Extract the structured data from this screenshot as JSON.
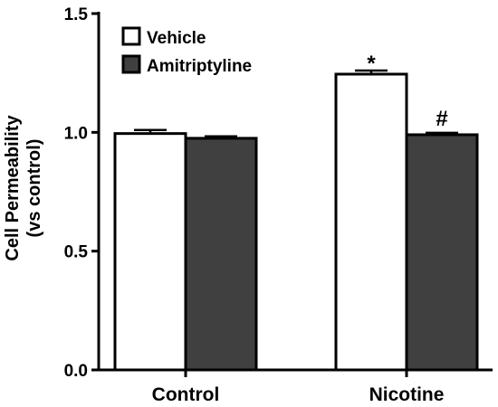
{
  "chart_data": {
    "type": "bar",
    "categories": [
      "Control",
      "Nicotine"
    ],
    "series": [
      {
        "name": "Vehicle",
        "values": [
          0.995,
          1.245
        ],
        "errors": [
          0.015,
          0.015
        ],
        "color": "#ffffff"
      },
      {
        "name": "Amitriptyline",
        "values": [
          0.975,
          0.99
        ],
        "errors": [
          0.008,
          0.008
        ],
        "color": "#404040"
      }
    ],
    "ylabel_lines": [
      "Cell Permeability",
      "(vs control)"
    ],
    "xlabel": "",
    "ylim": [
      0.0,
      1.5
    ],
    "yticks": [
      0.0,
      0.5,
      1.0,
      1.5
    ],
    "ytick_labels": [
      "0.0",
      "0.5",
      "1.0",
      "1.5"
    ],
    "legend_position": "top-left",
    "annotations": [
      {
        "category": 1,
        "series": 0,
        "text": "*"
      },
      {
        "category": 1,
        "series": 1,
        "text": "#"
      }
    ],
    "grid": false
  }
}
